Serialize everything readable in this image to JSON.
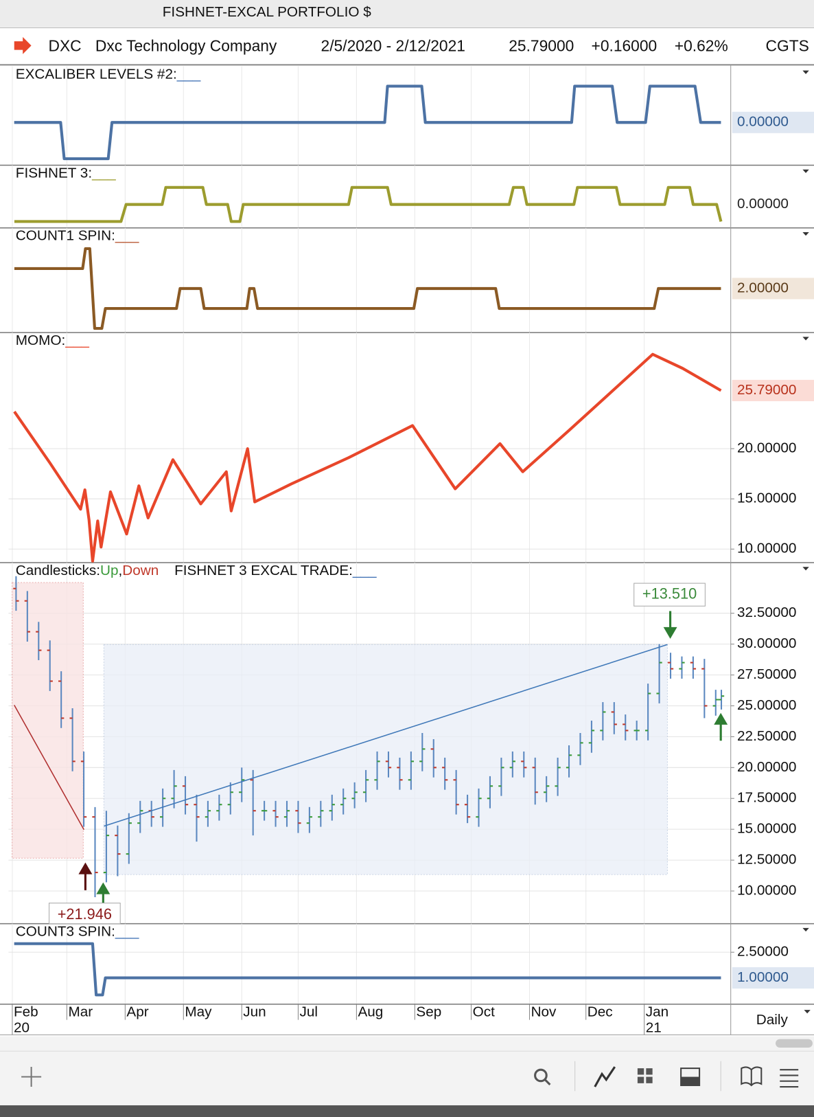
{
  "header": {
    "title": "FISHNET-EXCAL PORTFOLIO $",
    "symbol": "DXC",
    "company": "Dxc Technology Company",
    "range": "2/5/2020 - 2/12/2021",
    "last": "25.79000",
    "change": "+0.16000",
    "change_pct": "+0.62%",
    "source": "CGTS"
  },
  "x_axis": {
    "xlim": [
      -2,
      382
    ],
    "xticks": [
      {
        "value": 0,
        "label": "Feb"
      },
      {
        "value": 29,
        "label": "Mar"
      },
      {
        "value": 60,
        "label": "Apr"
      },
      {
        "value": 91,
        "label": "May"
      },
      {
        "value": 122,
        "label": "Jun"
      },
      {
        "value": 152,
        "label": "Jul"
      },
      {
        "value": 183,
        "label": "Aug"
      },
      {
        "value": 214,
        "label": "Sep"
      },
      {
        "value": 244,
        "label": "Oct"
      },
      {
        "value": 275,
        "label": "Nov"
      },
      {
        "value": 305,
        "label": "Dec"
      },
      {
        "value": 336,
        "label": "Jan"
      }
    ],
    "year_labels": [
      {
        "value": 0,
        "label": "20"
      },
      {
        "value": 336,
        "label": "21"
      }
    ],
    "interval": "Daily"
  },
  "chart_data": [
    {
      "type": "line",
      "label": "EXCALIBER LEVELS #2:",
      "label_suffix": "___",
      "color": "#4c72a4",
      "suffix_color": "#3d6fb3",
      "label_bg": "#dfe7f2",
      "label_color": "#2f5a8f",
      "ylim": [
        -1.18,
        1.55
      ],
      "last_label": {
        "value": 0,
        "label": "0.00000"
      },
      "x": [
        1,
        25.7,
        27.6,
        51,
        53,
        198,
        199.5,
        217.7,
        219.6,
        297.4,
        299,
        319,
        321.6,
        336.7,
        339,
        363,
        366,
        376.8
      ],
      "values": [
        0,
        0,
        -1,
        -1,
        0,
        0,
        1,
        1,
        0,
        0,
        1,
        1,
        0,
        0,
        1,
        1,
        0,
        0
      ]
    },
    {
      "type": "line",
      "label": "FISHNET 3:",
      "label_suffix": "___",
      "color": "#9c9c2e",
      "suffix_color": "#9c9c2e",
      "label_bg": "#ffffff",
      "label_color": "#222222",
      "ylim": [
        -1.375,
        2.3
      ],
      "last_label": {
        "value": 0,
        "label": "0.00000"
      },
      "x": [
        1.1,
        57.8,
        60.5,
        79.7,
        81.6,
        101.3,
        103.2,
        114.5,
        116.4,
        121,
        122.8,
        178.8,
        180.6,
        199.5,
        201.4,
        264.2,
        266.4,
        271.7,
        273.6,
        298.6,
        300.5,
        321.2,
        323.1,
        346.9,
        348.8,
        360.2,
        362,
        374.5,
        376.8
      ],
      "values": [
        -1,
        -1,
        0,
        0,
        1,
        1,
        0,
        0,
        -1,
        -1,
        0,
        0,
        1,
        1,
        0,
        0,
        1,
        1,
        0,
        0,
        1,
        1,
        0,
        0,
        1,
        1,
        0,
        0,
        -1
      ]
    },
    {
      "type": "line",
      "label": "COUNT1 SPIN:",
      "label_suffix": "___",
      "color": "#8b5a24",
      "suffix_color": "#b5502a",
      "label_bg": "#f1e6da",
      "label_color": "#5a3a18",
      "ylim": [
        -0.21,
        5.04
      ],
      "last_label": {
        "value": 2,
        "label": "2.00000"
      },
      "x": [
        1.1,
        37.4,
        38.9,
        41.2,
        43.8,
        47.6,
        49.5,
        87.3,
        89.2,
        100.2,
        102,
        124.7,
        126.2,
        128.5,
        130.4,
        213.5,
        215.4,
        257,
        258.9,
        341.3,
        343.5,
        376.8
      ],
      "values": [
        3,
        3,
        4,
        4,
        0,
        0,
        1,
        1,
        2,
        2,
        1,
        1,
        2,
        2,
        1,
        1,
        2,
        2,
        1,
        1,
        2,
        2
      ]
    },
    {
      "type": "line",
      "label": "MOMO:",
      "label_suffix": "___",
      "color": "#e8462a",
      "suffix_color": "#e8462a",
      "label_bg": "#fbdcd6",
      "label_color": "#b8321c",
      "ylim": [
        8.65,
        31.56
      ],
      "last_label": {
        "value": 25.79,
        "label": "25.79000"
      },
      "yticks": [
        {
          "value": 10,
          "label": "10.00000"
        },
        {
          "value": 15,
          "label": "15.00000"
        },
        {
          "value": 20,
          "label": "20.00000"
        }
      ],
      "x": [
        1.1,
        20,
        36.3,
        38.6,
        40.8,
        42.7,
        45.4,
        47.2,
        52.2,
        60.8,
        67.3,
        72.2,
        85.4,
        100.2,
        113.8,
        116.4,
        125.1,
        128.9,
        148.5,
        178.8,
        212.8,
        235.5,
        259.3,
        271.4,
        295.9,
        340.5,
        356.4,
        376.8
      ],
      "values": [
        23.69,
        18.58,
        13.97,
        15.9,
        12.9,
        8.8,
        12.8,
        10.2,
        15.7,
        11.5,
        16.3,
        13.1,
        18.9,
        14.5,
        17.7,
        13.8,
        20,
        14.7,
        16.5,
        19.1,
        22.3,
        16,
        20.5,
        17.7,
        21.8,
        29.4,
        28,
        25.79
      ]
    },
    {
      "type": "candlestick",
      "label": "Candlesticks:",
      "legend": [
        "Up",
        "Down"
      ],
      "separator": ",",
      "title": "FISHNET 3 EXCAL TRADE:",
      "label_suffix": "___",
      "suffix_color": "#3d6fb3",
      "up_color": "#3a9a3a",
      "down_color": "#c0392b",
      "bar_color": "#5b88c0",
      "ylim": [
        7.35,
        36.6
      ],
      "yticks": [
        {
          "value": 10,
          "label": "10.00000"
        },
        {
          "value": 12.5,
          "label": "12.50000"
        },
        {
          "value": 15,
          "label": "15.00000"
        },
        {
          "value": 17.5,
          "label": "17.50000"
        },
        {
          "value": 20,
          "label": "20.00000"
        },
        {
          "value": 22.5,
          "label": "22.50000"
        },
        {
          "value": 25,
          "label": "25.00000"
        },
        {
          "value": 27.5,
          "label": "27.50000"
        },
        {
          "value": 30,
          "label": "30.00000"
        },
        {
          "value": 32.5,
          "label": "32.50000"
        }
      ],
      "annotations": [
        "+21.946",
        "+13.510"
      ],
      "x": [
        2,
        8,
        14,
        20,
        26,
        32,
        38,
        44,
        50,
        56,
        62,
        68,
        74,
        80,
        86,
        92,
        98,
        104,
        110,
        116,
        122,
        128,
        134,
        140,
        146,
        152,
        158,
        164,
        170,
        176,
        182,
        188,
        194,
        200,
        206,
        212,
        218,
        224,
        230,
        236,
        242,
        248,
        254,
        260,
        266,
        272,
        278,
        284,
        290,
        296,
        302,
        308,
        314,
        320,
        326,
        332,
        338,
        344,
        350,
        356,
        362,
        368,
        374,
        377
      ],
      "open": [
        34.5,
        33.5,
        31,
        29.5,
        27,
        24,
        20.5,
        16,
        11.5,
        14.5,
        13,
        15.5,
        16.5,
        16,
        17.5,
        18.5,
        17,
        16,
        16.5,
        17,
        18,
        19,
        16.5,
        16.5,
        16,
        16.5,
        15.5,
        16,
        16.5,
        17,
        17.5,
        18,
        19,
        20.5,
        20,
        19,
        20.5,
        21.5,
        20,
        19,
        17,
        16,
        17.5,
        18.5,
        20,
        20.5,
        20,
        18,
        18.5,
        20,
        21,
        22,
        23,
        24.5,
        23.5,
        23,
        23,
        26,
        28.5,
        28,
        28.5,
        28,
        25,
        25.5
      ],
      "high": [
        35.5,
        34.3,
        31.8,
        30.3,
        27.8,
        24.8,
        21.3,
        16.8,
        16.5,
        15.3,
        16.3,
        17.3,
        17.3,
        18.3,
        19.8,
        19.3,
        17.8,
        17.3,
        17.8,
        18.8,
        20,
        19.8,
        17.3,
        17.3,
        17.3,
        17.3,
        16.8,
        17.3,
        17.8,
        18.3,
        18.8,
        19.8,
        21.3,
        21.3,
        20.8,
        21.3,
        22.8,
        22.3,
        20.8,
        19.8,
        17.8,
        18.3,
        19.3,
        20.8,
        21.3,
        21.3,
        20.8,
        19.3,
        20.8,
        21.8,
        22.8,
        23.8,
        25.3,
        25.3,
        24.3,
        23.8,
        26.8,
        30,
        29.3,
        29,
        29,
        28.8,
        26.3,
        26.3
      ],
      "low": [
        32.7,
        30.2,
        28.7,
        26.2,
        23.2,
        19.7,
        15.2,
        9.5,
        10.7,
        11.2,
        12.2,
        14.7,
        15.2,
        15.2,
        16.7,
        16.2,
        14,
        15.2,
        15.7,
        16.2,
        17.2,
        14.5,
        15.7,
        15.2,
        15.2,
        14.7,
        14.7,
        15.2,
        15.7,
        16.2,
        16.7,
        17.2,
        18.2,
        19.2,
        18.2,
        18.2,
        19.7,
        19.2,
        18.2,
        16.2,
        15.5,
        15.2,
        16.7,
        17.7,
        19.2,
        19.2,
        17,
        17.2,
        17.7,
        19.2,
        20.2,
        21.2,
        22.2,
        22.7,
        22.2,
        22.2,
        22.2,
        25.2,
        27.2,
        27.2,
        27.2,
        24,
        24.2,
        24.7
      ],
      "close": [
        33.5,
        31,
        29.5,
        27,
        24,
        20.5,
        16,
        11.5,
        14.5,
        13,
        15.5,
        16.5,
        16,
        17.5,
        18.5,
        17,
        16,
        16.5,
        17,
        18,
        19,
        16.5,
        16.5,
        16,
        16.5,
        15.5,
        16,
        16.5,
        17,
        17.5,
        18,
        19,
        20.5,
        20,
        19,
        20.5,
        21.5,
        20,
        19,
        17,
        16,
        17.5,
        18.5,
        20,
        20.5,
        20,
        18,
        18.5,
        20,
        21,
        22,
        23,
        24.5,
        23.5,
        23,
        23,
        26,
        28.5,
        28,
        28.5,
        28,
        25,
        25.5,
        25.79
      ]
    },
    {
      "type": "line",
      "label": "COUNT3 SPIN:",
      "label_suffix": "___",
      "color": "#4c72a4",
      "suffix_color": "#3d6fb3",
      "label_bg": "#dfe7f2",
      "label_color": "#2f5a8f",
      "ylim": [
        -0.54,
        4.17
      ],
      "last_label": {
        "value": 1,
        "label": "1.00000"
      },
      "yticks": [
        {
          "value": 2.5,
          "label": "2.50000"
        }
      ],
      "x": [
        1,
        42.7,
        44.6,
        48,
        49.5,
        376.8
      ],
      "values": [
        3,
        3,
        0,
        0,
        1,
        1
      ]
    }
  ]
}
